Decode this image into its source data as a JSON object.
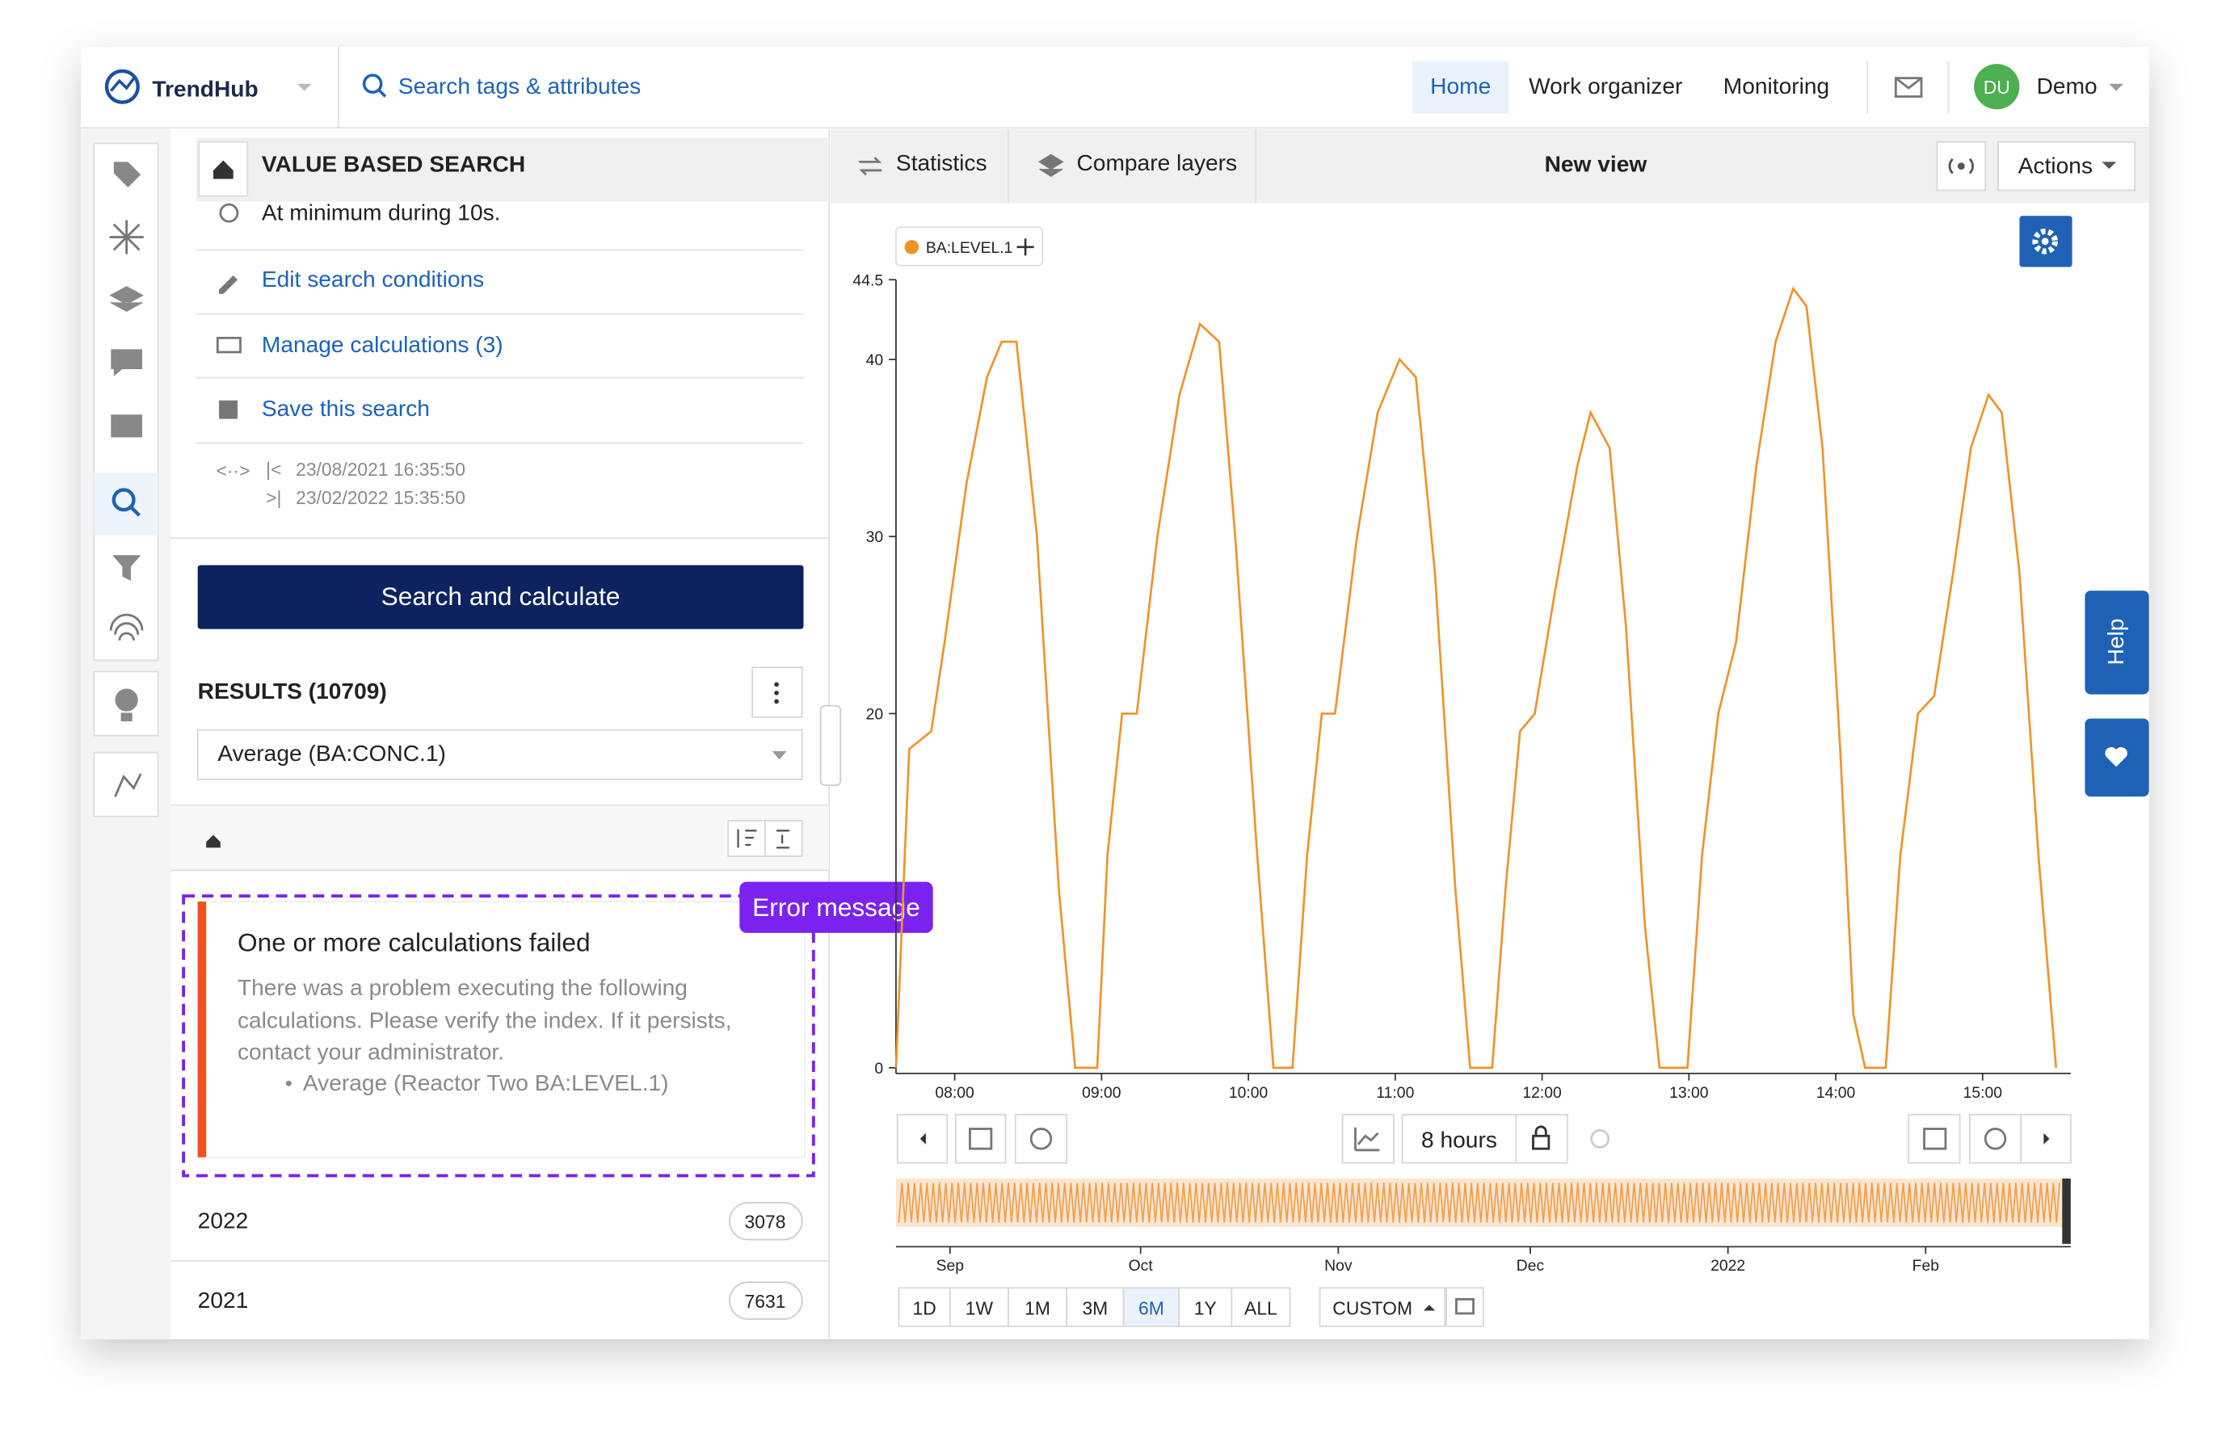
{
  "header": {
    "logo": "TrendHub",
    "search": "Search tags & attributes",
    "nav": [
      "Home",
      "Work organizer",
      "Monitoring"
    ],
    "avatar": "DU",
    "user": "Demo"
  },
  "left_panel": {
    "title": "VALUE BASED SEARCH",
    "condition": "At minimum during 10s.",
    "links": [
      "Edit search conditions",
      "Manage calculations (3)",
      "Save this search"
    ],
    "range_start": "23/08/2021 16:35:50",
    "range_end": "23/02/2022 15:35:50",
    "button": "Search and calculate",
    "results": "RESULTS (10709)",
    "select": "Average (BA:CONC.1)",
    "error": {
      "tag": "Error message",
      "title": "One or more calculations failed",
      "body": [
        "There was a problem executing the following",
        "calculations. Please verify the index. If it persists,",
        "contact your administrator."
      ],
      "item": "Average (Reactor Two BA:LEVEL.1)"
    },
    "groups": [
      {
        "label": "2022",
        "count": 3078
      },
      {
        "label": "2021",
        "count": 7631
      }
    ]
  },
  "toolbar": {
    "statistics": "Statistics",
    "compare": "Compare layers",
    "view": "New view",
    "actions": "Actions"
  },
  "help": "Help",
  "chart": {
    "type": "line",
    "series": [
      {
        "name": "BA:LEVEL.1",
        "color": "#f0922b",
        "x": [
          7.6,
          7.69,
          7.84,
          7.93,
          8.08,
          8.22,
          8.32,
          8.42,
          8.56,
          8.71,
          8.82,
          8.97,
          9.04,
          9.14,
          9.24,
          9.38,
          9.53,
          9.67,
          9.8,
          9.91,
          10.06,
          10.17,
          10.3,
          10.4,
          10.5,
          10.59,
          10.74,
          10.88,
          11.03,
          11.14,
          11.27,
          11.41,
          11.51,
          11.66,
          11.75,
          11.85,
          11.95,
          12.09,
          12.24,
          12.33,
          12.46,
          12.57,
          12.7,
          12.8,
          12.99,
          13.09,
          13.2,
          13.32,
          13.46,
          13.59,
          13.71,
          13.8,
          13.91,
          14.03,
          14.12,
          14.2,
          14.34,
          14.44,
          14.56,
          14.67,
          14.8,
          14.92,
          15.04,
          15.13,
          15.25,
          15.38,
          15.5
        ],
        "values": [
          0,
          18,
          19,
          24,
          33,
          39,
          41,
          41,
          30,
          10,
          0,
          0,
          12,
          20,
          20,
          30,
          38,
          42,
          41,
          30,
          12,
          0,
          0,
          12,
          20,
          20,
          30,
          37,
          40,
          39,
          28,
          10,
          0,
          0,
          10,
          19,
          20,
          27,
          34,
          37,
          35,
          25,
          8,
          0,
          0,
          12,
          20,
          24,
          34,
          41,
          44,
          43,
          35,
          18,
          3,
          0,
          0,
          12,
          20,
          21,
          28,
          35,
          38,
          37,
          28,
          12,
          0
        ]
      }
    ],
    "xlim": [
      7.6,
      15.6
    ],
    "xticks": [
      {
        "value": 8,
        "label": "08:00"
      },
      {
        "value": 9,
        "label": "09:00"
      },
      {
        "value": 10,
        "label": "10:00"
      },
      {
        "value": 11,
        "label": "11:00"
      },
      {
        "value": 12,
        "label": "12:00"
      },
      {
        "value": 13,
        "label": "13:00"
      },
      {
        "value": 14,
        "label": "14:00"
      },
      {
        "value": 15,
        "label": "15:00"
      }
    ],
    "ylim": [
      0,
      44.5
    ],
    "yticks": [
      0,
      20,
      30,
      40,
      44.5
    ]
  },
  "controls": {
    "duration": "8 hours",
    "navigator_labels": [
      "Sep",
      "Oct",
      "Nov",
      "Dec",
      "2022",
      "Feb"
    ],
    "ranges": [
      "1D",
      "1W",
      "1M",
      "3M",
      "6M",
      "1Y",
      "ALL"
    ],
    "custom": "CUSTOM"
  }
}
